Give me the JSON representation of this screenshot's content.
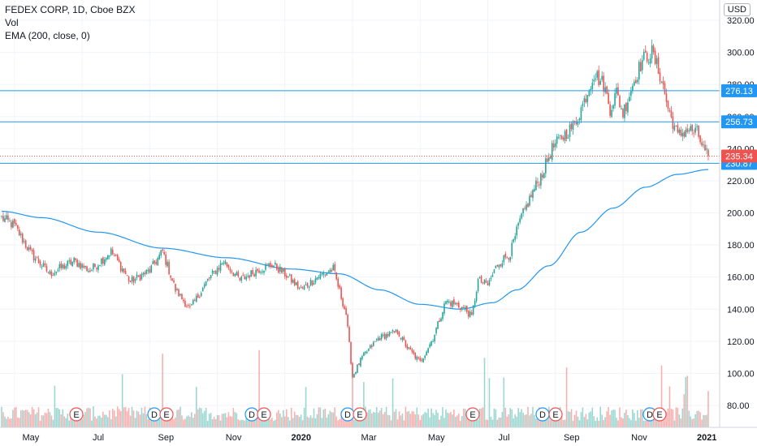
{
  "chart_data": {
    "type": "candlestick",
    "title": "FEDEX CORP, 1D, Cboe BZX",
    "legend": {
      "title": "FEDEX CORP, 1D, Cboe BZX",
      "volume": "Vol",
      "ema": "EMA (200, close, 0)"
    },
    "currency": "USD",
    "y_axis": {
      "ylim": [
        70,
        330
      ],
      "ticks": [
        80,
        100,
        120,
        140,
        160,
        180,
        200,
        220,
        240,
        260,
        280,
        300,
        320
      ],
      "tick_labels": [
        "80.00",
        "100.00",
        "120.00",
        "140.00",
        "160.00",
        "180.00",
        "200.00",
        "220.00",
        "240.00",
        "260.00",
        "280.00",
        "300.00",
        "320.00"
      ]
    },
    "x_axis": {
      "labels": [
        "May",
        "Jul",
        "Sep",
        "Nov",
        "2020",
        "Mar",
        "May",
        "Jul",
        "Sep",
        "Nov",
        "2021"
      ],
      "label_index": [
        8,
        50,
        92,
        134,
        176,
        218,
        260,
        302,
        344,
        386,
        428
      ],
      "count": 440
    },
    "horizontal_lines": [
      {
        "value": 276.13,
        "label": "276.13",
        "color": "#2196f3"
      },
      {
        "value": 256.73,
        "label": "256.73",
        "color": "#2196f3"
      },
      {
        "value": 230.87,
        "label": "230.87",
        "color": "#2196f3"
      }
    ],
    "last_price": {
      "value": 235.34,
      "label": "235.34",
      "color": "#ef5350"
    },
    "close_anchors": [
      [
        0,
        197
      ],
      [
        8,
        192
      ],
      [
        18,
        175
      ],
      [
        30,
        162
      ],
      [
        45,
        170
      ],
      [
        55,
        164
      ],
      [
        68,
        176
      ],
      [
        80,
        157
      ],
      [
        92,
        164
      ],
      [
        100,
        176
      ],
      [
        108,
        152
      ],
      [
        117,
        140
      ],
      [
        128,
        158
      ],
      [
        138,
        170
      ],
      [
        148,
        158
      ],
      [
        160,
        165
      ],
      [
        168,
        168
      ],
      [
        176,
        162
      ],
      [
        186,
        152
      ],
      [
        196,
        160
      ],
      [
        206,
        165
      ],
      [
        214,
        137
      ],
      [
        218,
        98
      ],
      [
        224,
        110
      ],
      [
        234,
        122
      ],
      [
        246,
        126
      ],
      [
        252,
        116
      ],
      [
        260,
        107
      ],
      [
        268,
        122
      ],
      [
        276,
        145
      ],
      [
        282,
        143
      ],
      [
        288,
        140
      ],
      [
        292,
        135
      ],
      [
        296,
        158
      ],
      [
        302,
        155
      ],
      [
        308,
        168
      ],
      [
        316,
        175
      ],
      [
        322,
        195
      ],
      [
        330,
        213
      ],
      [
        336,
        225
      ],
      [
        342,
        240
      ],
      [
        348,
        247
      ],
      [
        356,
        255
      ],
      [
        362,
        270
      ],
      [
        368,
        287
      ],
      [
        374,
        280
      ],
      [
        378,
        265
      ],
      [
        382,
        275
      ],
      [
        386,
        262
      ],
      [
        392,
        280
      ],
      [
        398,
        295
      ],
      [
        404,
        300
      ],
      [
        410,
        283
      ],
      [
        414,
        265
      ],
      [
        420,
        248
      ],
      [
        426,
        252
      ],
      [
        432,
        250
      ],
      [
        436,
        240
      ],
      [
        439,
        235
      ]
    ],
    "ema_points": [
      [
        0,
        201
      ],
      [
        25,
        197
      ],
      [
        60,
        188
      ],
      [
        100,
        178
      ],
      [
        140,
        172
      ],
      [
        180,
        165
      ],
      [
        210,
        162
      ],
      [
        235,
        152
      ],
      [
        260,
        143
      ],
      [
        285,
        140
      ],
      [
        305,
        144
      ],
      [
        320,
        152
      ],
      [
        340,
        167
      ],
      [
        360,
        188
      ],
      [
        380,
        203
      ],
      [
        400,
        216
      ],
      [
        420,
        224
      ],
      [
        439,
        227
      ]
    ],
    "volume": {
      "max_height": 100
    }
  }
}
